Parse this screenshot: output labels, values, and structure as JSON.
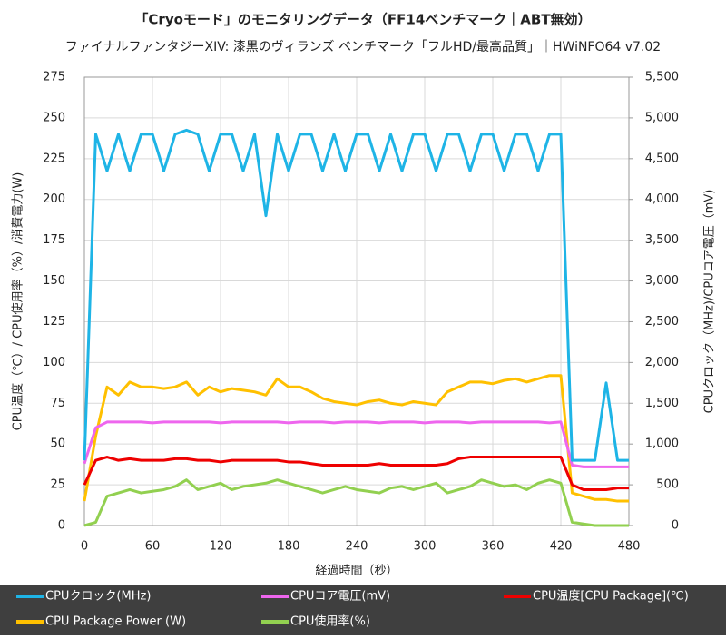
{
  "chart_data": {
    "type": "line",
    "title": "「Cryoモード」のモニタリングデータ（FF14ベンチマーク｜ABT無効）",
    "subtitle": "ファイナルファンタジーXIV: 漆黒のヴィランズ ベンチマーク「フルHD/最高品質」｜HWiNFO64 v7.02",
    "x_label": "経過時間（秒）",
    "y_label": "CPU温度（℃）/ CPU使用率（%）/消費電力(W)",
    "y2_label": "CPUクロック（MHz)/CPUコア電圧（mV)",
    "x": [
      0,
      10,
      20,
      30,
      40,
      50,
      60,
      70,
      80,
      90,
      100,
      110,
      120,
      130,
      140,
      150,
      160,
      170,
      180,
      190,
      200,
      210,
      220,
      230,
      240,
      250,
      260,
      270,
      280,
      290,
      300,
      310,
      320,
      330,
      340,
      350,
      360,
      370,
      380,
      390,
      400,
      410,
      420,
      430,
      440,
      450,
      460,
      470,
      480
    ],
    "xlim": [
      0,
      480
    ],
    "xticks": [
      0,
      60,
      120,
      180,
      240,
      300,
      360,
      420,
      480
    ],
    "ylim": [
      0,
      275
    ],
    "yticks": [
      0,
      25,
      50,
      75,
      100,
      125,
      150,
      175,
      200,
      225,
      250,
      275
    ],
    "y2lim": [
      0,
      5500
    ],
    "y2ticks": [
      0,
      {
        "value": 500,
        "label": "500"
      },
      {
        "value": 1000,
        "label": "1,000"
      },
      {
        "value": 1500,
        "label": "1,500"
      },
      {
        "value": 2000,
        "label": "2,000"
      },
      {
        "value": 2500,
        "label": "2,500"
      },
      {
        "value": 3000,
        "label": "3,000"
      },
      {
        "value": 3500,
        "label": "3,500"
      },
      {
        "value": 4000,
        "label": "4,000"
      },
      {
        "value": 4500,
        "label": "4,500"
      },
      {
        "value": 5000,
        "label": "5,000"
      },
      {
        "value": 5500,
        "label": "5,500"
      }
    ],
    "grid": true,
    "legend": "bottom",
    "series": [
      {
        "name": "CPU使用率(%)",
        "color": "#92d050",
        "values": [
          0,
          2,
          18,
          20,
          22,
          20,
          21,
          22,
          24,
          28,
          22,
          24,
          26,
          22,
          24,
          25,
          26,
          28,
          26,
          24,
          22,
          20,
          22,
          24,
          22,
          21,
          20,
          23,
          24,
          22,
          24,
          26,
          20,
          22,
          24,
          28,
          26,
          24,
          25,
          22,
          26,
          28,
          26,
          2,
          1,
          0,
          0,
          0,
          0
        ]
      },
      {
        "name": "CPU Package Power (W)",
        "color": "#ffc000",
        "values": [
          15,
          55,
          85,
          80,
          88,
          85,
          85,
          84,
          85,
          88,
          80,
          85,
          82,
          84,
          83,
          82,
          80,
          90,
          85,
          85,
          82,
          78,
          76,
          75,
          74,
          76,
          77,
          75,
          74,
          76,
          75,
          74,
          82,
          85,
          88,
          88,
          87,
          89,
          90,
          88,
          90,
          92,
          92,
          20,
          18,
          16,
          16,
          15,
          15
        ]
      },
      {
        "name": "CPU温度[CPU Package](℃)",
        "color": "#ee0000",
        "values": [
          25,
          40,
          42,
          40,
          41,
          40,
          40,
          40,
          41,
          41,
          40,
          40,
          39,
          40,
          40,
          40,
          40,
          40,
          39,
          39,
          38,
          37,
          37,
          37,
          37,
          37,
          38,
          37,
          37,
          37,
          37,
          37,
          38,
          41,
          42,
          42,
          42,
          42,
          42,
          42,
          42,
          42,
          42,
          25,
          22,
          22,
          22,
          23,
          23
        ]
      },
      {
        "name": "CPUコア電圧(mV)",
        "color": "#ee66ee",
        "axis": "y2",
        "values": [
          760,
          1200,
          1270,
          1270,
          1270,
          1270,
          1260,
          1270,
          1270,
          1270,
          1270,
          1270,
          1260,
          1270,
          1270,
          1270,
          1270,
          1270,
          1260,
          1270,
          1270,
          1270,
          1260,
          1270,
          1270,
          1270,
          1260,
          1270,
          1270,
          1270,
          1260,
          1270,
          1270,
          1270,
          1260,
          1270,
          1270,
          1270,
          1270,
          1270,
          1270,
          1260,
          1270,
          740,
          720,
          720,
          720,
          720,
          720
        ]
      },
      {
        "name": "CPUクロック(MHz)",
        "color": "#1eb4e6",
        "axis": "y2",
        "values": [
          800,
          4800,
          4350,
          4800,
          4350,
          4800,
          4800,
          4350,
          4800,
          4850,
          4800,
          4350,
          4800,
          4800,
          4350,
          4800,
          3800,
          4800,
          4350,
          4800,
          4800,
          4350,
          4800,
          4350,
          4800,
          4800,
          4350,
          4800,
          4350,
          4800,
          4800,
          4350,
          4800,
          4800,
          4350,
          4800,
          4800,
          4350,
          4800,
          4800,
          4350,
          4800,
          4800,
          800,
          800,
          800,
          1750,
          800,
          800
        ]
      }
    ]
  }
}
